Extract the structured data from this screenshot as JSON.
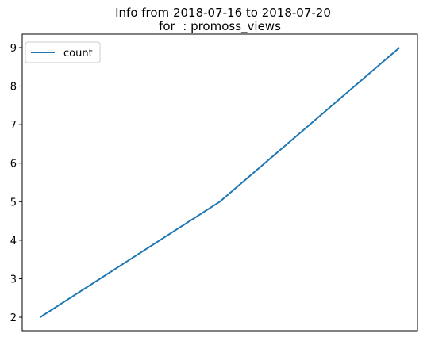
{
  "chart_data": {
    "type": "line",
    "title_line1": "Info from 2018-07-16 to 2018-07-20",
    "title_line2": "for  : promoss_views",
    "xlabel": "",
    "ylabel": "",
    "x": [
      0,
      1,
      2
    ],
    "series": [
      {
        "name": "count",
        "values": [
          2,
          5,
          9
        ],
        "color": "#1f77b4"
      }
    ],
    "ylim": [
      1.65,
      9.35
    ],
    "yticks": [
      2,
      3,
      4,
      5,
      6,
      7,
      8,
      9
    ],
    "xticks": [],
    "grid": false,
    "legend_position": "top-left"
  }
}
